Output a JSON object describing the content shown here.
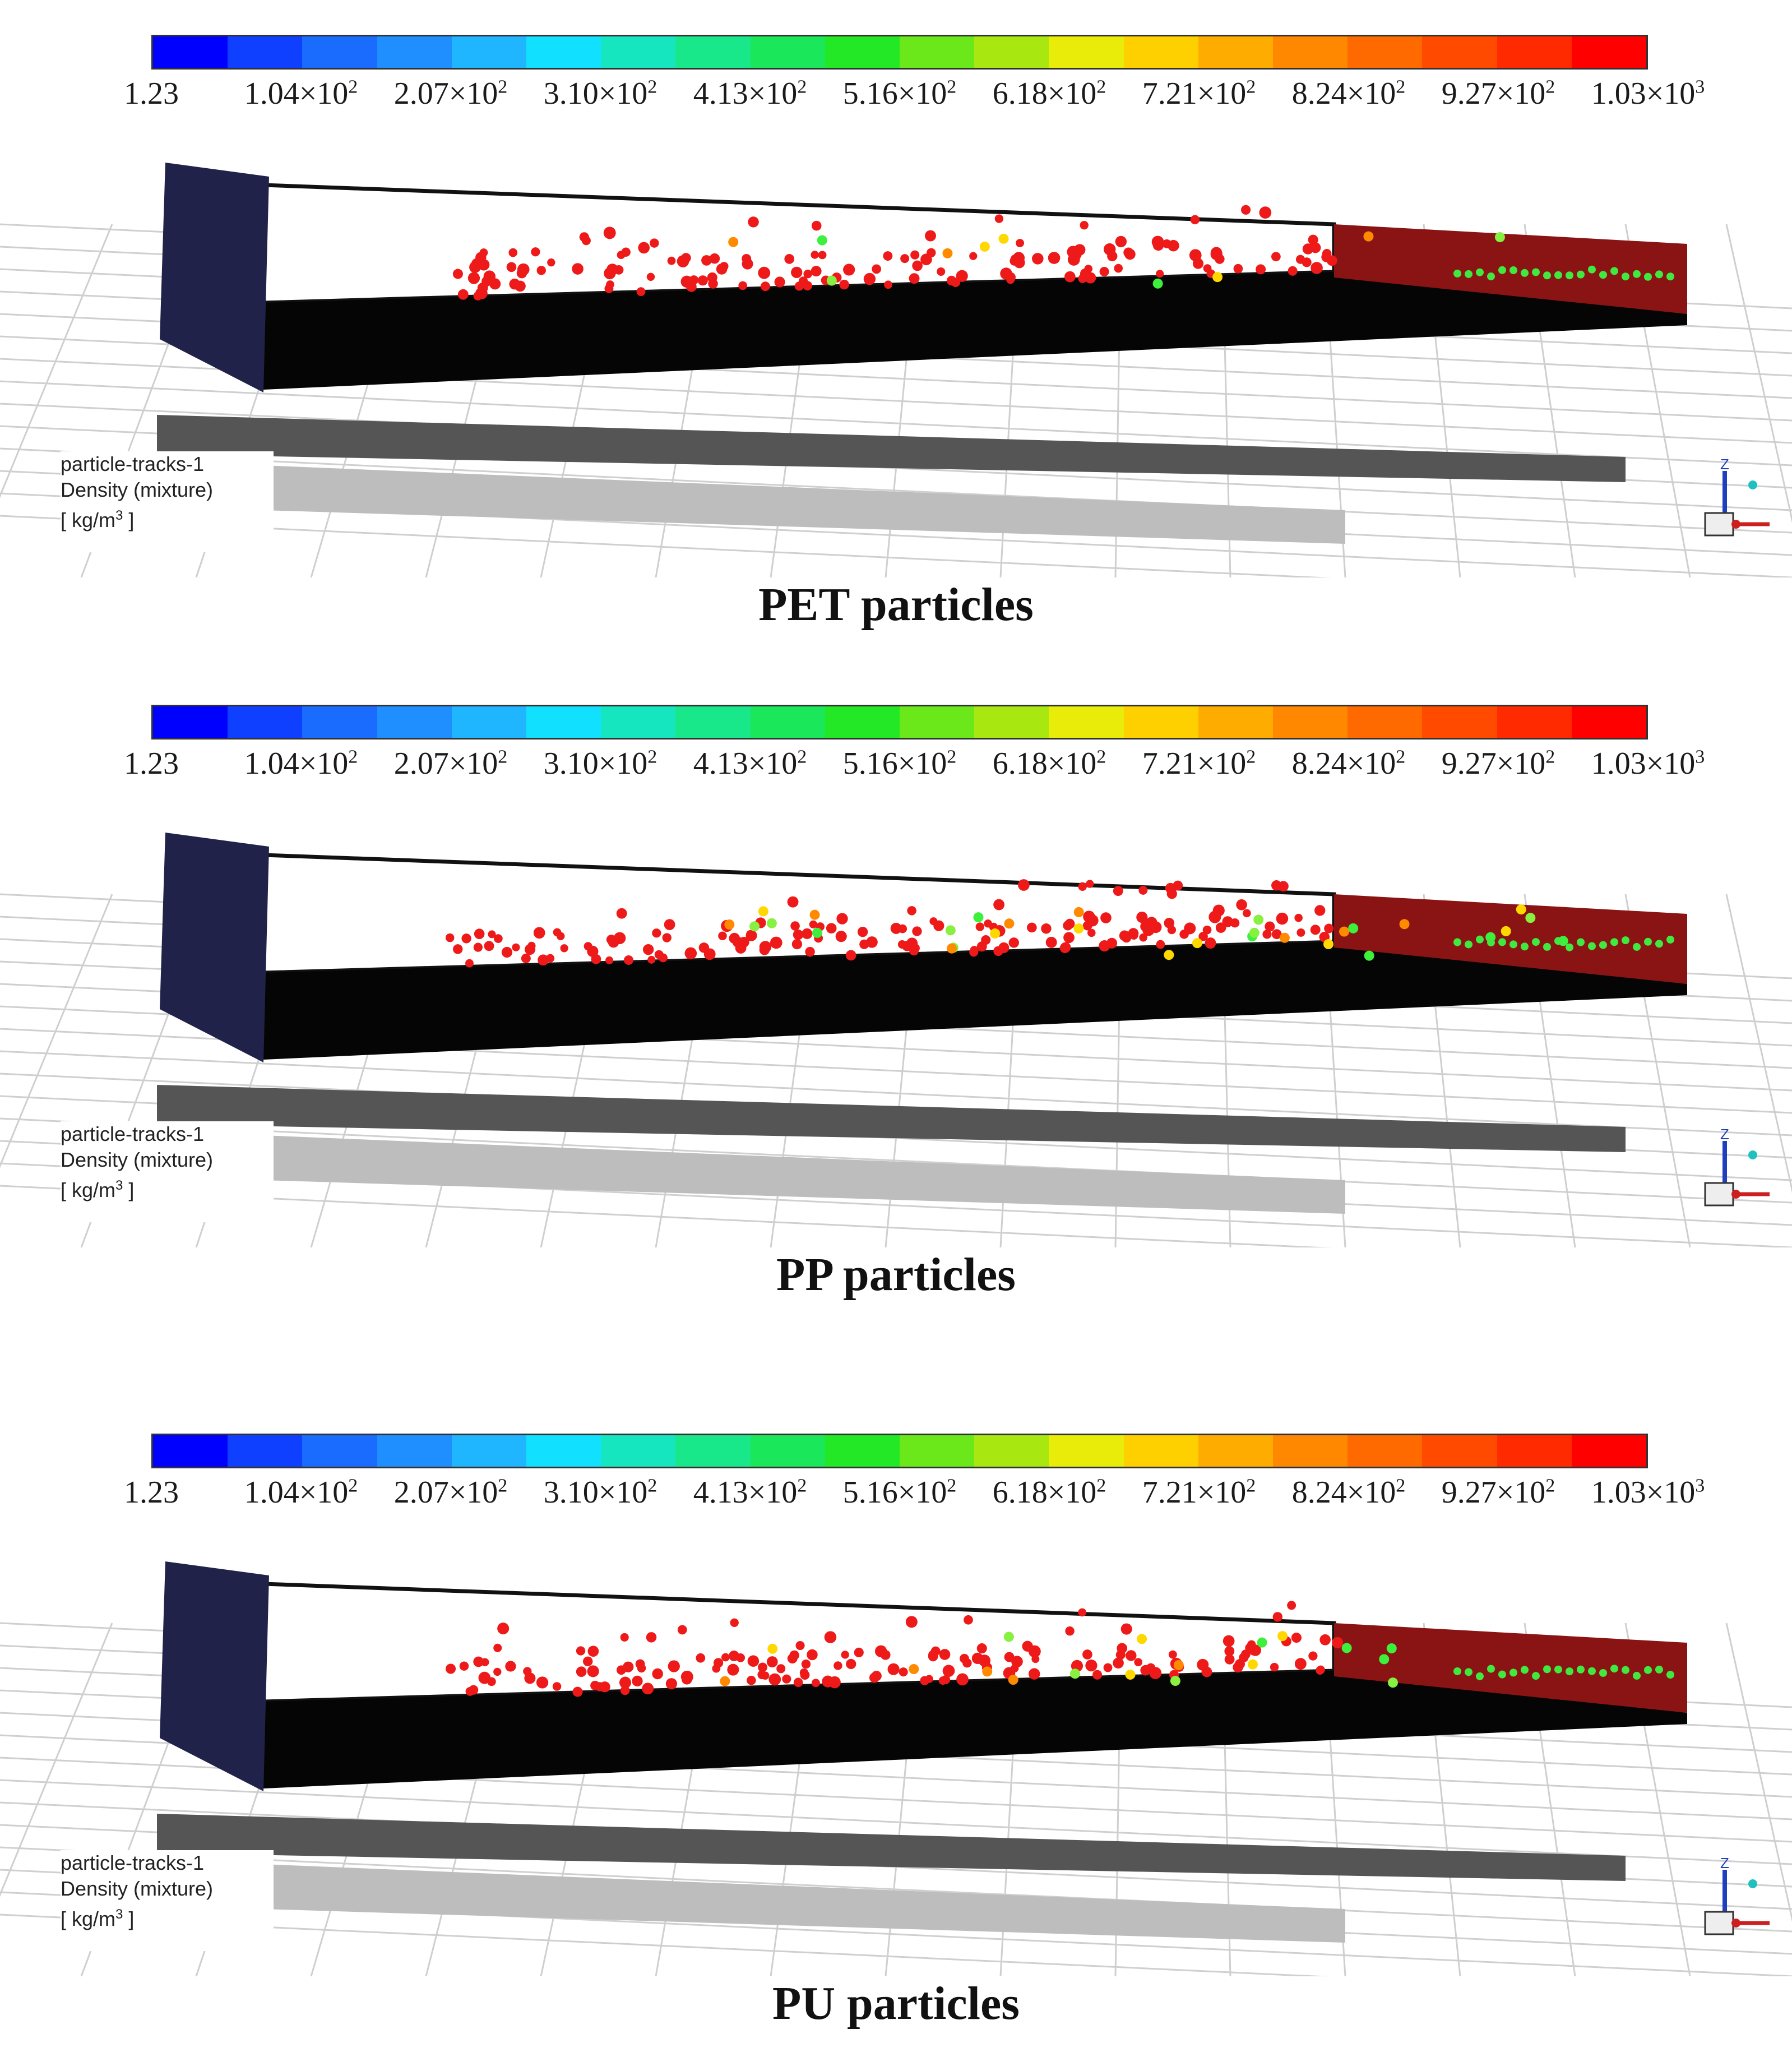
{
  "colorbar": {
    "colors": [
      "#0000ff",
      "#1040ff",
      "#1a6cff",
      "#1f8fff",
      "#1fb6ff",
      "#12e0ff",
      "#15e6c0",
      "#18e88a",
      "#1ae85a",
      "#22e826",
      "#6ae81a",
      "#a8e810",
      "#e8ec08",
      "#ffd000",
      "#ffac00",
      "#ff8800",
      "#ff6a00",
      "#ff4a00",
      "#ff2a00",
      "#ff0000"
    ],
    "ticks": [
      {
        "base": "1.23",
        "exp": ""
      },
      {
        "base": "1.04×10",
        "exp": "2"
      },
      {
        "base": "2.07×10",
        "exp": "2"
      },
      {
        "base": "3.10×10",
        "exp": "2"
      },
      {
        "base": "4.13×10",
        "exp": "2"
      },
      {
        "base": "5.16×10",
        "exp": "2"
      },
      {
        "base": "6.18×10",
        "exp": "2"
      },
      {
        "base": "7.21×10",
        "exp": "2"
      },
      {
        "base": "8.24×10",
        "exp": "2"
      },
      {
        "base": "9.27×10",
        "exp": "2"
      },
      {
        "base": "1.03×10",
        "exp": "3"
      }
    ]
  },
  "legend": {
    "line1": "particle-tracks-1",
    "line2": "Density (mixture)",
    "unit_prefix": "[ kg/m",
    "unit_exp": "3",
    "unit_suffix": " ]"
  },
  "axis_labels": {
    "z": "Z"
  },
  "panels": [
    {
      "caption": "PET particles",
      "extra_colored": 10
    },
    {
      "caption": "PP particles",
      "extra_colored": 30
    },
    {
      "caption": "PU particles",
      "extra_colored": 18
    }
  ]
}
